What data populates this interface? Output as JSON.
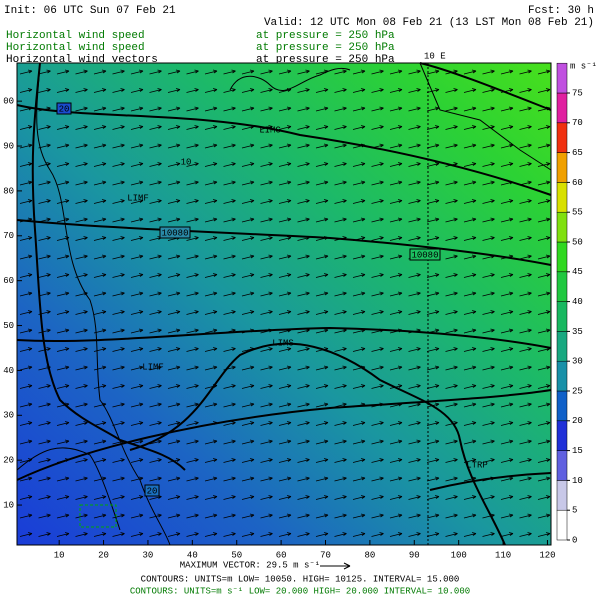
{
  "header": {
    "init": "Init: 06 UTC Sun 07 Feb 21",
    "fcst": "Fcst:   30 h",
    "valid": "Valid: 12 UTC Mon 08 Feb 21 (13 LST Mon 08 Feb 21)",
    "fields": [
      {
        "name": "Horizontal wind speed",
        "level": "at pressure =  250 hPa"
      },
      {
        "name": "Horizontal wind speed",
        "level": "at pressure =  250 hPa"
      },
      {
        "name": "Horizontal wind vectors",
        "level": "at pressure =  250 hPa"
      }
    ]
  },
  "map": {
    "xlim": [
      0.5,
      120.8
    ],
    "ylim": [
      1.1,
      108.5
    ],
    "xticks": [
      10,
      20,
      30,
      40,
      50,
      60,
      70,
      80,
      90,
      100,
      110,
      120
    ],
    "yticks": [
      10,
      20,
      30,
      40,
      50,
      60,
      70,
      80,
      90,
      {
        "value": 100,
        "label": "00"
      }
    ],
    "meridian_label": "10 E",
    "contour_labels": [
      "10080",
      "10080",
      "LIMF",
      "LIMC",
      "LIMF",
      "LIMS",
      "LTRP",
      "20",
      "20",
      "10"
    ]
  },
  "colorbar": {
    "unit": "m s⁻¹",
    "ticks": [
      0,
      5,
      10,
      15,
      20,
      25,
      30,
      35,
      40,
      45,
      50,
      55,
      60,
      65,
      70,
      75
    ],
    "colors": [
      "#ffffff",
      "#c8c8e8",
      "#6060e0",
      "#2030d8",
      "#1060c8",
      "#1890a8",
      "#18a880",
      "#18b860",
      "#20c840",
      "#30d820",
      "#80e010",
      "#d8e000",
      "#f0a000",
      "#f03010",
      "#e020a0",
      "#c050e0"
    ]
  },
  "footer": {
    "max_vector": "MAXIMUM VECTOR:  29.5 m s⁻¹",
    "contours1": "CONTOURS:  UNITS=m   LOW= 10050.      HIGH=  10125.      INTERVAL=   15.000",
    "contours2": "CONTOURS:  UNITS=m s⁻¹  LOW=  20.000      HIGH=  20.000      INTERVAL=   10.000"
  }
}
